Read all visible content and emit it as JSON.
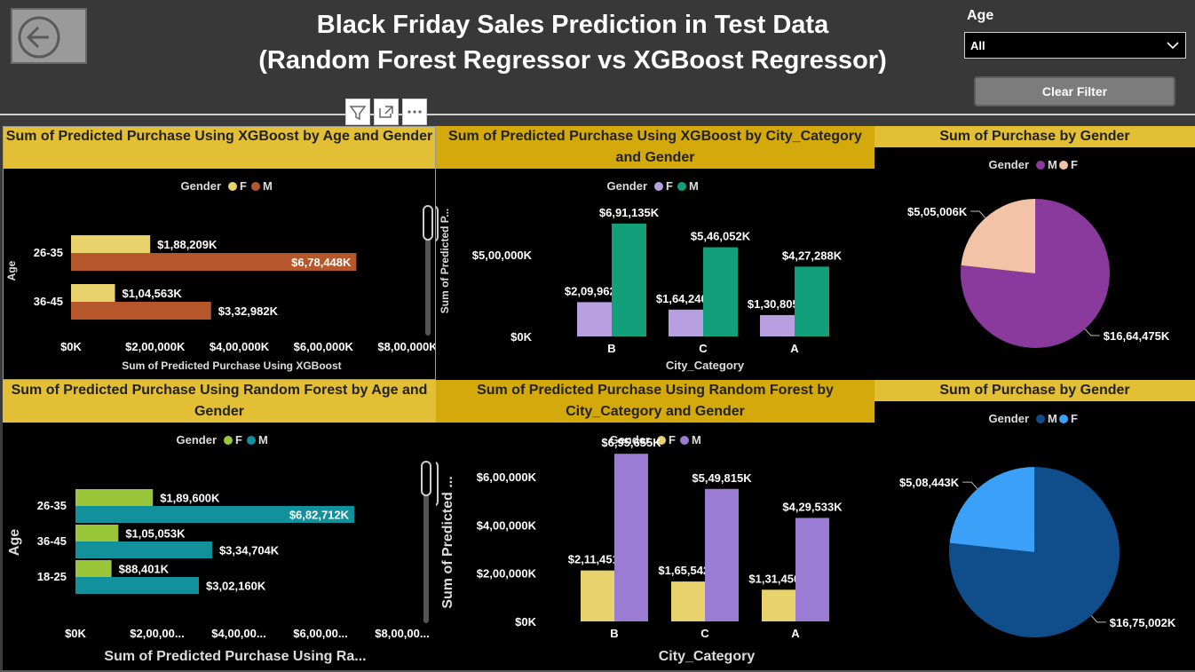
{
  "header": {
    "title_line1": "Black Friday Sales Prediction in Test Data",
    "title_line2": "(Random Forest Regressor vs XGBoost Regressor)",
    "age_filter_label": "Age",
    "age_filter_value": "All",
    "clear_filter_label": "Clear Filter"
  },
  "icons": [
    "back-arrow-icon",
    "filter-icon",
    "focus-mode-icon",
    "more-options-icon",
    "chevron-down-icon"
  ],
  "colors": {
    "title_bar": "#e3bf35",
    "xgb_age_f": "#e8d26b",
    "xgb_age_m": "#b5562b",
    "xgb_city_f": "#b8a0e0",
    "xgb_city_m": "#12a07a",
    "pie1_m": "#8a3a9c",
    "pie1_f": "#f3c3a7",
    "rf_age_f": "#9ac63a",
    "rf_age_m": "#12919c",
    "rf_city_f": "#e8d26b",
    "rf_city_m": "#9a7cd4",
    "pie2_m": "#0f4e8a",
    "pie2_f": "#3aa0f8"
  },
  "chart_data": [
    {
      "id": "xgb_age",
      "type": "bar",
      "orientation": "horizontal",
      "title": "Sum of Predicted Purchase Using XGBoost by Age and Gender",
      "legend_title": "Gender",
      "xlabel": "Sum of Predicted Purchase Using XGBoost",
      "ylabel": "Age",
      "categories": [
        "26-35",
        "36-45"
      ],
      "series": [
        {
          "name": "F",
          "values": [
            188209,
            104563
          ],
          "labels": [
            "$1,88,209K",
            "$1,04,563K"
          ]
        },
        {
          "name": "M",
          "values": [
            678448,
            332982
          ],
          "labels": [
            "$6,78,448K",
            "$3,32,982K"
          ]
        }
      ],
      "xlim": [
        0,
        800000
      ],
      "x_ticks": [
        "$0K",
        "$2,00,000K",
        "$4,00,000K",
        "$6,00,000K",
        "$8,00,000K"
      ]
    },
    {
      "id": "xgb_city",
      "type": "bar",
      "orientation": "vertical",
      "title": "Sum of Predicted Purchase Using XGBoost by City_Category and Gender",
      "legend_title": "Gender",
      "xlabel": "City_Category",
      "ylabel": "Sum of Predicted P...",
      "categories": [
        "B",
        "C",
        "A"
      ],
      "series": [
        {
          "name": "F",
          "values": [
            209962,
            164240,
            130805
          ],
          "labels": [
            "$2,09,962K",
            "$1,64,240K",
            "$1,30,805K"
          ]
        },
        {
          "name": "M",
          "values": [
            691135,
            546052,
            427288
          ],
          "labels": [
            "$6,91,135K",
            "$5,46,052K",
            "$4,27,288K"
          ]
        }
      ],
      "ylim": [
        0,
        750000
      ],
      "y_ticks": [
        {
          "v": 0,
          "label": "$0K"
        },
        {
          "v": 500000,
          "label": "$5,00,000K"
        }
      ]
    },
    {
      "id": "pie_xgb",
      "type": "pie",
      "title": "Sum of Purchase by Gender",
      "legend_title": "Gender",
      "slices": [
        {
          "name": "M",
          "value": 1664475,
          "label": "$16,64,475K"
        },
        {
          "name": "F",
          "value": 505006,
          "label": "$5,05,006K"
        }
      ]
    },
    {
      "id": "rf_age",
      "type": "bar",
      "orientation": "horizontal",
      "title": "Sum of Predicted Purchase Using Random Forest by Age and Gender",
      "legend_title": "Gender",
      "xlabel": "Sum of Predicted Purchase Using Ra...",
      "ylabel": "Age",
      "categories": [
        "26-35",
        "36-45",
        "18-25"
      ],
      "series": [
        {
          "name": "F",
          "values": [
            189600,
            105053,
            88401
          ],
          "labels": [
            "$1,89,600K",
            "$1,05,053K",
            "$88,401K"
          ]
        },
        {
          "name": "M",
          "values": [
            682712,
            334704,
            302160
          ],
          "labels": [
            "$6,82,712K",
            "$3,34,704K",
            "$3,02,160K"
          ]
        }
      ],
      "xlim": [
        0,
        800000
      ],
      "x_ticks": [
        "$0K",
        "$2,00,00...",
        "$4,00,00...",
        "$6,00,00...",
        "$8,00,00..."
      ]
    },
    {
      "id": "rf_city",
      "type": "bar",
      "orientation": "vertical",
      "title": "Sum of Predicted Purchase Using Random Forest by City_Category and Gender",
      "legend_title": "Gender",
      "xlabel": "City_Category",
      "ylabel": "Sum of Predicted ...",
      "categories": [
        "B",
        "C",
        "A"
      ],
      "series": [
        {
          "name": "F",
          "values": [
            211451,
            165542,
            131450
          ],
          "labels": [
            "$2,11,451K",
            "$1,65,542K",
            "$1,31,450K"
          ]
        },
        {
          "name": "M",
          "values": [
            695655,
            549815,
            429533
          ],
          "labels": [
            "$6,95,655K",
            "$5,49,815K",
            "$4,29,533K"
          ]
        }
      ],
      "ylim": [
        0,
        700000
      ],
      "y_ticks": [
        {
          "v": 0,
          "label": "$0K"
        },
        {
          "v": 200000,
          "label": "$2,00,000K"
        },
        {
          "v": 400000,
          "label": "$4,00,000K"
        },
        {
          "v": 600000,
          "label": "$6,00,000K"
        }
      ]
    },
    {
      "id": "pie_rf",
      "type": "pie",
      "title": "Sum of Purchase by Gender",
      "legend_title": "Gender",
      "slices": [
        {
          "name": "M",
          "value": 1675002,
          "label": "$16,75,002K"
        },
        {
          "name": "F",
          "value": 508443,
          "label": "$5,08,443K"
        }
      ]
    }
  ]
}
